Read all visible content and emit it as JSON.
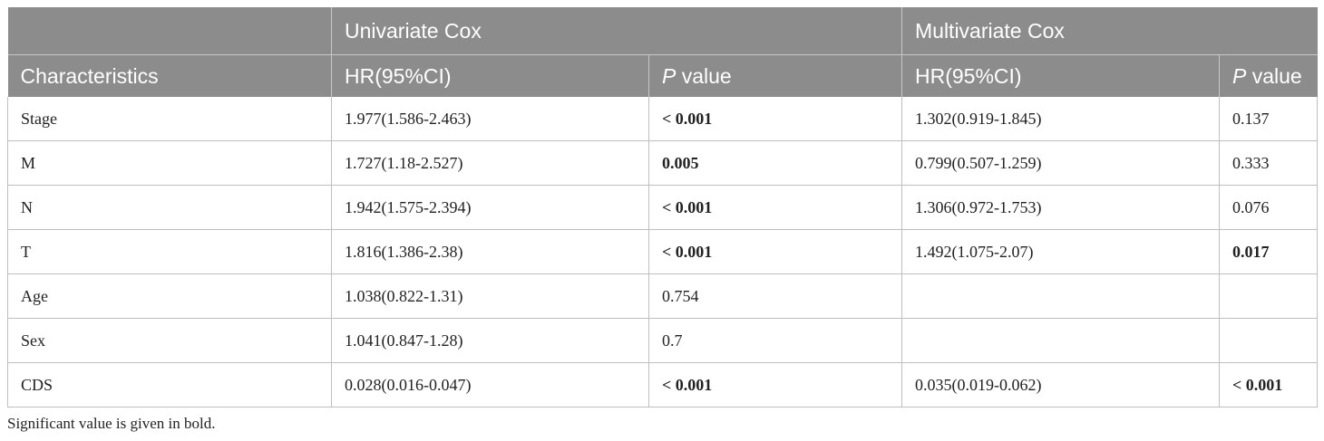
{
  "table": {
    "group_headers": [
      "",
      "Univariate Cox",
      "Multivariate Cox"
    ],
    "column_headers": {
      "characteristics": "Characteristics",
      "uni_hr": "HR(95%CI)",
      "uni_p_italic": "P",
      "uni_p_rest": " value",
      "multi_hr": "HR(95%CI)",
      "multi_p_italic": "P",
      "multi_p_rest": " value"
    },
    "rows": [
      {
        "name": "Stage",
        "uni_hr": "1.977(1.586-2.463)",
        "uni_p": "< 0.001",
        "multi_hr": "1.302(0.919-1.845)",
        "multi_p": "0.137"
      },
      {
        "name": "M",
        "uni_hr": "1.727(1.18-2.527)",
        "uni_p": "0.005",
        "multi_hr": "0.799(0.507-1.259)",
        "multi_p": "0.333"
      },
      {
        "name": "N",
        "uni_hr": "1.942(1.575-2.394)",
        "uni_p": "< 0.001",
        "multi_hr": "1.306(0.972-1.753)",
        "multi_p": "0.076"
      },
      {
        "name": "T",
        "uni_hr": "1.816(1.386-2.38)",
        "uni_p": "< 0.001",
        "multi_hr": "1.492(1.075-2.07)",
        "multi_p": "0.017"
      },
      {
        "name": "Age",
        "uni_hr": "1.038(0.822-1.31)",
        "uni_p": "0.754",
        "multi_hr": "",
        "multi_p": ""
      },
      {
        "name": "Sex",
        "uni_hr": "1.041(0.847-1.28)",
        "uni_p": "0.7",
        "multi_hr": "",
        "multi_p": ""
      },
      {
        "name": "CDS",
        "uni_hr": "0.028(0.016-0.047)",
        "uni_p": "< 0.001",
        "multi_hr": "0.035(0.019-0.062)",
        "multi_p": "< 0.001"
      }
    ]
  },
  "footnote": "Significant value is given in bold.",
  "colors": {
    "header_bg": "#8c8c8c",
    "header_text": "#ffffff",
    "grid": "#bfbfbf"
  }
}
